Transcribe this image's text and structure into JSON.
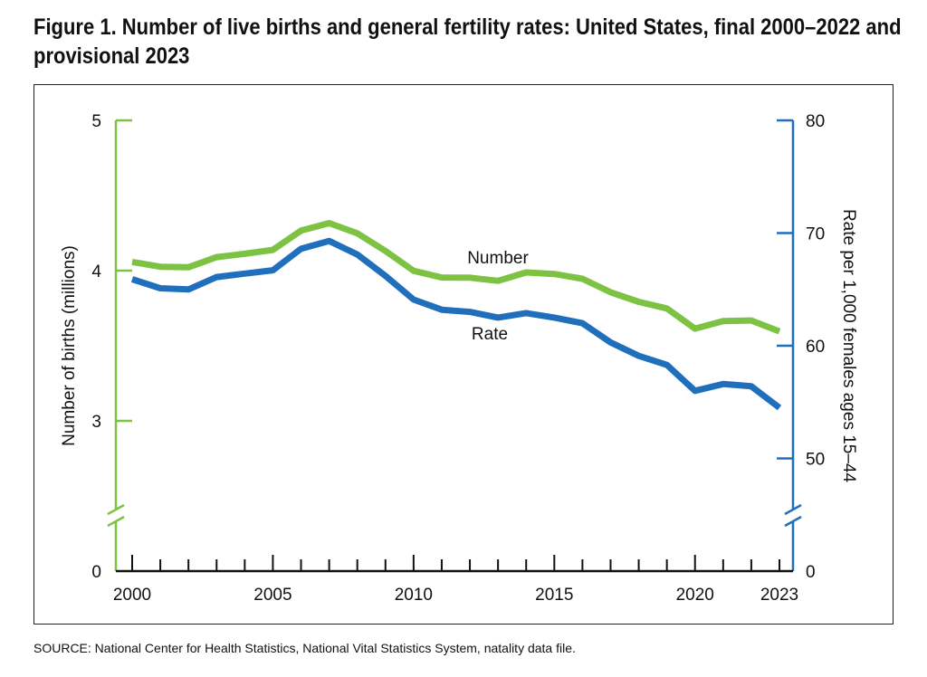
{
  "title": "Figure 1. Number of live births and general fertility rates: United States, final 2000–2022 and provisional 2023",
  "source": "SOURCE: National Center for Health Statistics, National Vital Statistics System, natality data file.",
  "chart_data": {
    "type": "line",
    "x": [
      2000,
      2001,
      2002,
      2003,
      2004,
      2005,
      2006,
      2007,
      2008,
      2009,
      2010,
      2011,
      2012,
      2013,
      2014,
      2015,
      2016,
      2017,
      2018,
      2019,
      2020,
      2021,
      2022,
      2023
    ],
    "x_ticks": [
      "2000",
      "2005",
      "2010",
      "2015",
      "2020",
      "2023"
    ],
    "xlim": [
      2000,
      2023
    ],
    "series": [
      {
        "name": "Number",
        "axis": "left",
        "color": "#7dc242",
        "values": [
          4.058,
          4.026,
          4.022,
          4.09,
          4.112,
          4.138,
          4.266,
          4.316,
          4.248,
          4.131,
          3.999,
          3.954,
          3.953,
          3.932,
          3.988,
          3.978,
          3.946,
          3.856,
          3.792,
          3.748,
          3.614,
          3.664,
          3.668,
          3.596
        ]
      },
      {
        "name": "Rate",
        "axis": "right",
        "color": "#1f6fbd",
        "values": [
          65.9,
          65.1,
          65.0,
          66.1,
          66.4,
          66.7,
          68.6,
          69.3,
          68.1,
          66.2,
          64.1,
          63.2,
          63.0,
          62.5,
          62.9,
          62.5,
          62.0,
          60.3,
          59.1,
          58.3,
          56.0,
          56.6,
          56.4,
          54.5
        ]
      }
    ],
    "left_axis": {
      "label": "Number of births (millions)",
      "ticks": [
        "0",
        "3",
        "4",
        "5"
      ],
      "tick_values": [
        0,
        3,
        4,
        5
      ],
      "range_shown": [
        2.4,
        5
      ],
      "break": true,
      "color": "#7dc242"
    },
    "right_axis": {
      "label": "Rate per 1,000 females ages 15–44",
      "ticks": [
        "0",
        "50",
        "60",
        "70",
        "80"
      ],
      "tick_values": [
        0,
        50,
        60,
        70,
        80
      ],
      "range_shown": [
        45,
        80
      ],
      "break": true,
      "color": "#1f6fbd"
    },
    "grid": false,
    "legend": "inline labels next to lines"
  }
}
